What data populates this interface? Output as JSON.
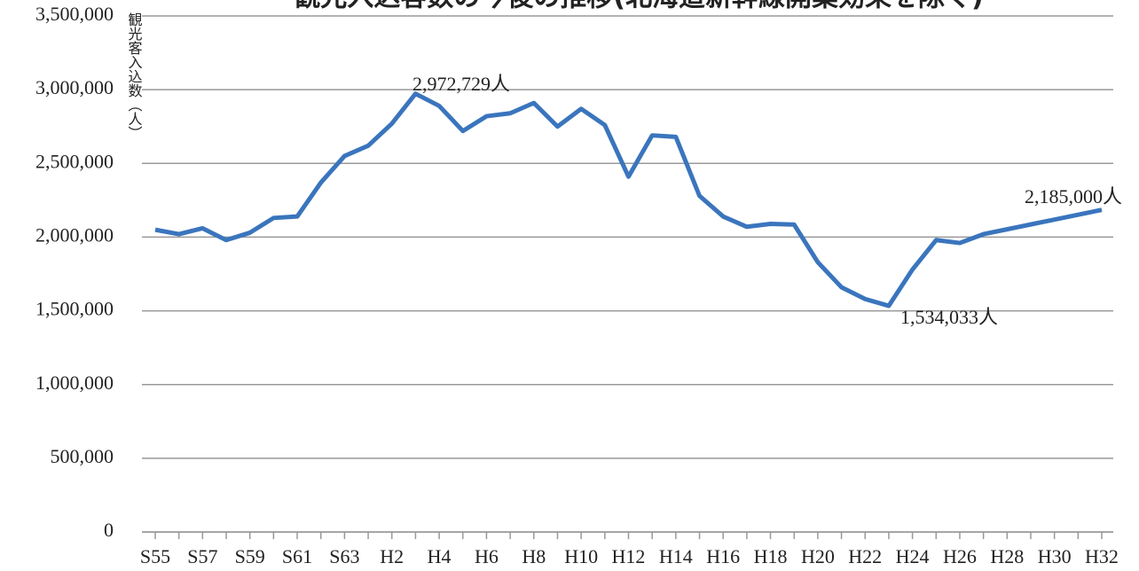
{
  "chart_data": {
    "type": "line",
    "title": "観光入込客数の今後の推移(北海道新幹線開業効果を除く)",
    "y_label": "観光客入込数（人）",
    "categories": [
      "S55",
      null,
      "S57",
      null,
      "S59",
      null,
      "S61",
      null,
      "S63",
      null,
      "H2",
      null,
      "H4",
      null,
      "H6",
      null,
      "H8",
      null,
      "H10",
      null,
      "H12",
      null,
      "H14",
      null,
      "H16",
      null,
      "H18",
      null,
      "H20",
      null,
      "H22",
      null,
      "H24",
      null,
      "H26",
      null,
      "H28",
      null,
      "H30",
      null,
      "H32"
    ],
    "series": [
      {
        "name": "観光客入込数",
        "color": "#3a75bd",
        "values": [
          2050000,
          2020000,
          2060000,
          1980000,
          2030000,
          2130000,
          2140000,
          2370000,
          2550000,
          2620000,
          2770000,
          2972729,
          2890000,
          2720000,
          2820000,
          2840000,
          2910000,
          2750000,
          2870000,
          2760000,
          2410000,
          2690000,
          2680000,
          2280000,
          2140000,
          2070000,
          2090000,
          2085000,
          1830000,
          1660000,
          1580000,
          1534033,
          1780000,
          1980000,
          1960000,
          2020000,
          2053000,
          2086000,
          2119000,
          2152000,
          2185000
        ]
      }
    ],
    "annotations": [
      "2,972,729人",
      "1,534,033人",
      "2,185,000人"
    ],
    "ylim": [
      0,
      3500000
    ],
    "yticks": [
      0,
      {
        "value": 500000,
        "label": "500,000"
      },
      {
        "value": 1000000,
        "label": "1,000,000"
      },
      {
        "value": 1500000,
        "label": "1,500,000"
      },
      {
        "value": 2000000,
        "label": "2,000,000"
      },
      {
        "value": 2500000,
        "label": "2,500,000"
      },
      {
        "value": 3000000,
        "label": "3,000,000"
      },
      {
        "value": 3500000,
        "label": "3,500,000"
      }
    ],
    "grid": true
  }
}
